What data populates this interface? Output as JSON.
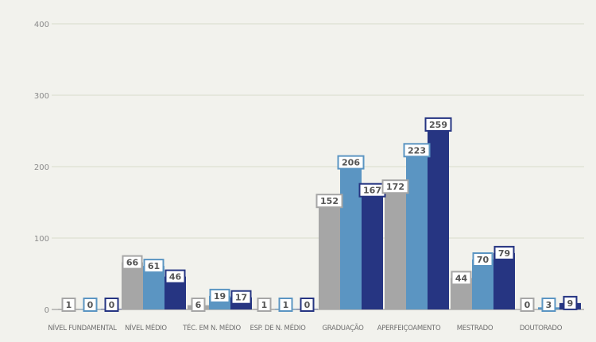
{
  "chart_data": {
    "type": "bar",
    "title": "",
    "xlabel": "",
    "ylabel": "",
    "ylim": [
      0,
      400
    ],
    "yticks": [
      0,
      100,
      200,
      300,
      400
    ],
    "grid": true,
    "categories": [
      "NÍVEL FUNDAMENTAL",
      "NÍVEL MÉDIO",
      "TÉC. EM N. MÉDIO",
      "ESP. DE N. MÉDIO",
      "GRADUAÇÃO",
      "APERFEIÇOAMENTO",
      "MESTRADO",
      "DOUTORADO"
    ],
    "series": [
      {
        "values": [
          1,
          66,
          6,
          1,
          152,
          172,
          44,
          0
        ],
        "color": "#a6a6a6",
        "label_border": "#a6a6a6"
      },
      {
        "values": [
          0,
          61,
          19,
          1,
          206,
          223,
          70,
          3
        ],
        "color": "#5b95c2",
        "label_border": "#5b95c2"
      },
      {
        "values": [
          0,
          46,
          17,
          0,
          167,
          259,
          79,
          9
        ],
        "color": "#263582",
        "label_border": "#263582"
      }
    ],
    "colors": {
      "grid": "#d8dccb",
      "axis": "#8a8a8a",
      "background": "#f2f2ed"
    }
  }
}
